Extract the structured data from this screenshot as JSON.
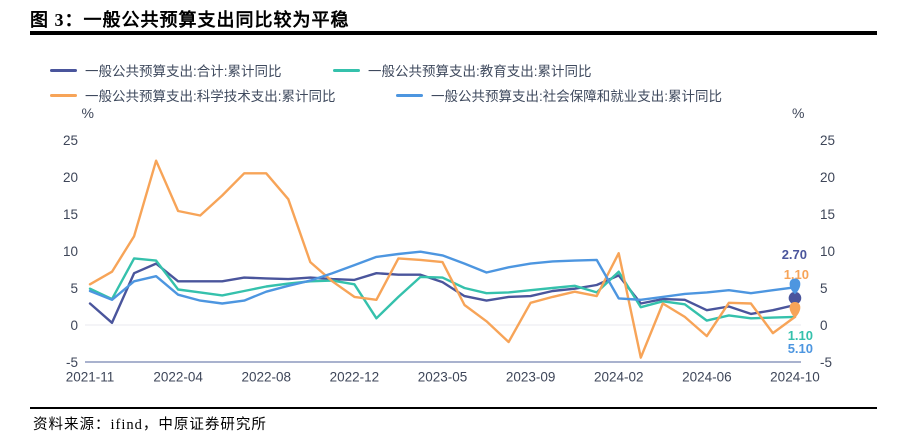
{
  "header": {
    "title": "图 3：一般公共预算支出同比较为平稳"
  },
  "legend": {
    "items": [
      {
        "label": "一般公共预算支出:合计:累计同比",
        "color": "#4A559C"
      },
      {
        "label": "一般公共预算支出:教育支出:累计同比",
        "color": "#35C1AC"
      },
      {
        "label": "一般公共预算支出:科学技术支出:累计同比",
        "color": "#F7A458"
      },
      {
        "label": "一般公共预算支出:社会保障和就业支出:累计同比",
        "color": "#4D96E0"
      }
    ]
  },
  "chart_data": {
    "type": "line",
    "unit_label": "%",
    "ylim": [
      -5,
      25
    ],
    "y_ticks": [
      25,
      20,
      15,
      10,
      5,
      0,
      -5
    ],
    "grid": {
      "zero_line": true,
      "bottom_axis_line": true,
      "legend_position": "top"
    },
    "x": [
      "2021-11",
      "2021-12",
      "2022-02",
      "2022-03",
      "2022-04",
      "2022-05",
      "2022-06",
      "2022-07",
      "2022-08",
      "2022-09",
      "2022-10",
      "2022-11",
      "2022-12",
      "2023-02",
      "2023-03",
      "2023-04",
      "2023-05",
      "2023-06",
      "2023-07",
      "2023-08",
      "2023-09",
      "2023-10",
      "2023-11",
      "2023-12",
      "2024-02",
      "2024-03",
      "2024-04",
      "2024-05",
      "2024-06",
      "2024-07",
      "2024-08",
      "2024-09",
      "2024-10"
    ],
    "x_axis_labels": [
      "2021-11",
      "2022-04",
      "2022-08",
      "2022-12",
      "2023-05",
      "2023-09",
      "2024-02",
      "2024-06",
      "2024-10"
    ],
    "series": [
      {
        "name": "一般公共预算支出:合计:累计同比",
        "color": "#4A559C",
        "marker": "circle",
        "end_label": "2.70",
        "values": [
          2.9,
          0.3,
          7.0,
          8.3,
          5.9,
          5.9,
          5.9,
          6.4,
          6.3,
          6.2,
          6.4,
          6.2,
          6.1,
          7.0,
          6.8,
          6.8,
          5.8,
          3.9,
          3.3,
          3.8,
          3.9,
          4.6,
          4.9,
          5.4,
          6.7,
          2.9,
          3.5,
          3.4,
          2.0,
          2.5,
          1.5,
          2.0,
          2.7
        ]
      },
      {
        "name": "一般公共预算支出:教育支出:累计同比",
        "color": "#35C1AC",
        "marker": "none",
        "end_label": "1.10",
        "values": [
          4.9,
          3.5,
          9.0,
          8.7,
          4.8,
          4.4,
          4.0,
          4.6,
          5.2,
          5.6,
          5.9,
          6.0,
          5.5,
          0.9,
          3.8,
          6.5,
          6.4,
          5.0,
          4.3,
          4.4,
          4.7,
          5.0,
          5.3,
          4.4,
          7.2,
          2.4,
          3.2,
          2.8,
          0.6,
          1.3,
          0.9,
          1.0,
          1.1
        ]
      },
      {
        "name": "一般公共预算支出:科学技术支出:累计同比",
        "color": "#F7A458",
        "marker": "pin",
        "end_label": "1.10",
        "values": [
          5.5,
          7.2,
          12.0,
          22.2,
          15.4,
          14.8,
          17.5,
          20.5,
          20.5,
          17.0,
          8.5,
          5.9,
          3.8,
          3.4,
          9.0,
          8.8,
          8.5,
          2.7,
          0.5,
          -2.3,
          3.0,
          3.8,
          4.5,
          3.9,
          9.7,
          -4.4,
          2.9,
          1.1,
          -1.5,
          3.0,
          2.9,
          -1.1,
          1.1
        ]
      },
      {
        "name": "一般公共预算支出:社会保障和就业支出:累计同比",
        "color": "#4D96E0",
        "marker": "pin",
        "end_label": "5.10",
        "values": [
          4.6,
          3.4,
          5.9,
          6.6,
          4.1,
          3.3,
          2.9,
          3.3,
          4.5,
          5.3,
          6.0,
          7.0,
          8.1,
          9.2,
          9.6,
          9.9,
          9.4,
          8.3,
          7.1,
          7.8,
          8.3,
          8.6,
          8.7,
          8.8,
          3.6,
          3.4,
          3.8,
          4.2,
          4.4,
          4.7,
          4.3,
          4.7,
          5.1
        ]
      }
    ]
  },
  "footer": {
    "source": "资料来源：ifind，中原证券研究所"
  }
}
